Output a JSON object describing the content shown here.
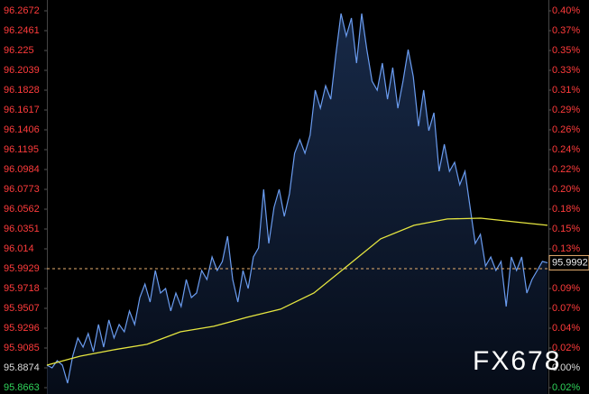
{
  "chart_data": {
    "type": "line",
    "watermark": "FX678",
    "ylim": [
      95.8663,
      96.2672
    ],
    "yticks": [
      95.8663,
      95.8874,
      95.9085,
      95.9296,
      95.9507,
      95.9718,
      95.9929,
      96.014,
      96.0351,
      96.0562,
      96.0773,
      96.0984,
      96.1195,
      96.1406,
      96.1617,
      96.1828,
      96.2039,
      96.225,
      96.2461,
      96.2672
    ],
    "y2lim": [
      -0.022,
      0.396
    ],
    "y2ticks": [
      {
        "value": -0.022,
        "label": "0.02%"
      },
      {
        "value": 0,
        "label": "0.00%"
      },
      {
        "value": 0.022,
        "label": "0.02%"
      },
      {
        "value": 0.044,
        "label": "0.04%"
      },
      {
        "value": 0.066,
        "label": "0.07%"
      },
      {
        "value": 0.088,
        "label": "0.09%"
      },
      {
        "value": 0.132,
        "label": "0.13%"
      },
      {
        "value": 0.154,
        "label": "0.15%"
      },
      {
        "value": 0.176,
        "label": "0.18%"
      },
      {
        "value": 0.198,
        "label": "0.20%"
      },
      {
        "value": 0.22,
        "label": "0.22%"
      },
      {
        "value": 0.242,
        "label": "0.24%"
      },
      {
        "value": 0.264,
        "label": "0.26%"
      },
      {
        "value": 0.286,
        "label": "0.29%"
      },
      {
        "value": 0.308,
        "label": "0.31%"
      },
      {
        "value": 0.33,
        "label": "0.33%"
      },
      {
        "value": 0.352,
        "label": "0.35%"
      },
      {
        "value": 0.374,
        "label": "0.37%"
      },
      {
        "value": 0.396,
        "label": "0.40%"
      }
    ],
    "up_color": "#ff3b3b",
    "down_color": "#2fd35a",
    "flat_color": "#dddddd",
    "reference_line": 95.9929,
    "reference_color": "#e8b070",
    "series": [
      {
        "color": "#6a9cf0",
        "values": [
          95.8903,
          95.8874,
          95.8951,
          95.8903,
          95.8711,
          95.8999,
          95.9191,
          95.9095,
          95.9239,
          95.9047,
          95.9335,
          95.9095,
          95.9383,
          95.9191,
          95.9335,
          95.9258,
          95.9479,
          95.9335,
          95.9622,
          95.9766,
          95.9574,
          95.991,
          95.967,
          95.9718,
          95.9479,
          95.967,
          95.9526,
          95.9814,
          95.9622,
          95.967,
          95.991,
          95.9814,
          96.0054,
          95.991,
          96.0006,
          96.0274,
          95.9814,
          95.9574,
          95.991,
          95.9718,
          96.0054,
          96.015,
          96.0773,
          96.0198,
          96.0581,
          96.0773,
          96.0485,
          96.0725,
          96.1157,
          96.1301,
          96.1157,
          96.1349,
          96.1828,
          96.1636,
          96.1876,
          96.1732,
          96.2212,
          96.2643,
          96.2403,
          96.2595,
          96.2116,
          96.2643,
          96.226,
          96.1924,
          96.1828,
          96.2116,
          96.1732,
          96.2068,
          96.1636,
          96.1924,
          96.226,
          96.1972,
          96.1444,
          96.1828,
          96.1397,
          96.1588,
          96.0965,
          96.1253,
          96.0965,
          96.1061,
          96.0821,
          96.0965,
          96.0581,
          96.0198,
          96.0294,
          95.9958,
          96.0054,
          95.991,
          96.0006,
          95.9526,
          96.0054,
          95.991,
          96.0054,
          95.967,
          95.9814,
          95.991,
          96.0006,
          95.9992
        ]
      },
      {
        "color": "#e6e640",
        "values": [
          95.8903,
          95.8999,
          95.9066,
          95.9124,
          95.9258,
          95.9316,
          95.9412,
          95.9498,
          95.967,
          95.9958,
          96.0246,
          96.039,
          96.0457,
          96.0466,
          96.0428,
          96.039
        ]
      }
    ]
  }
}
